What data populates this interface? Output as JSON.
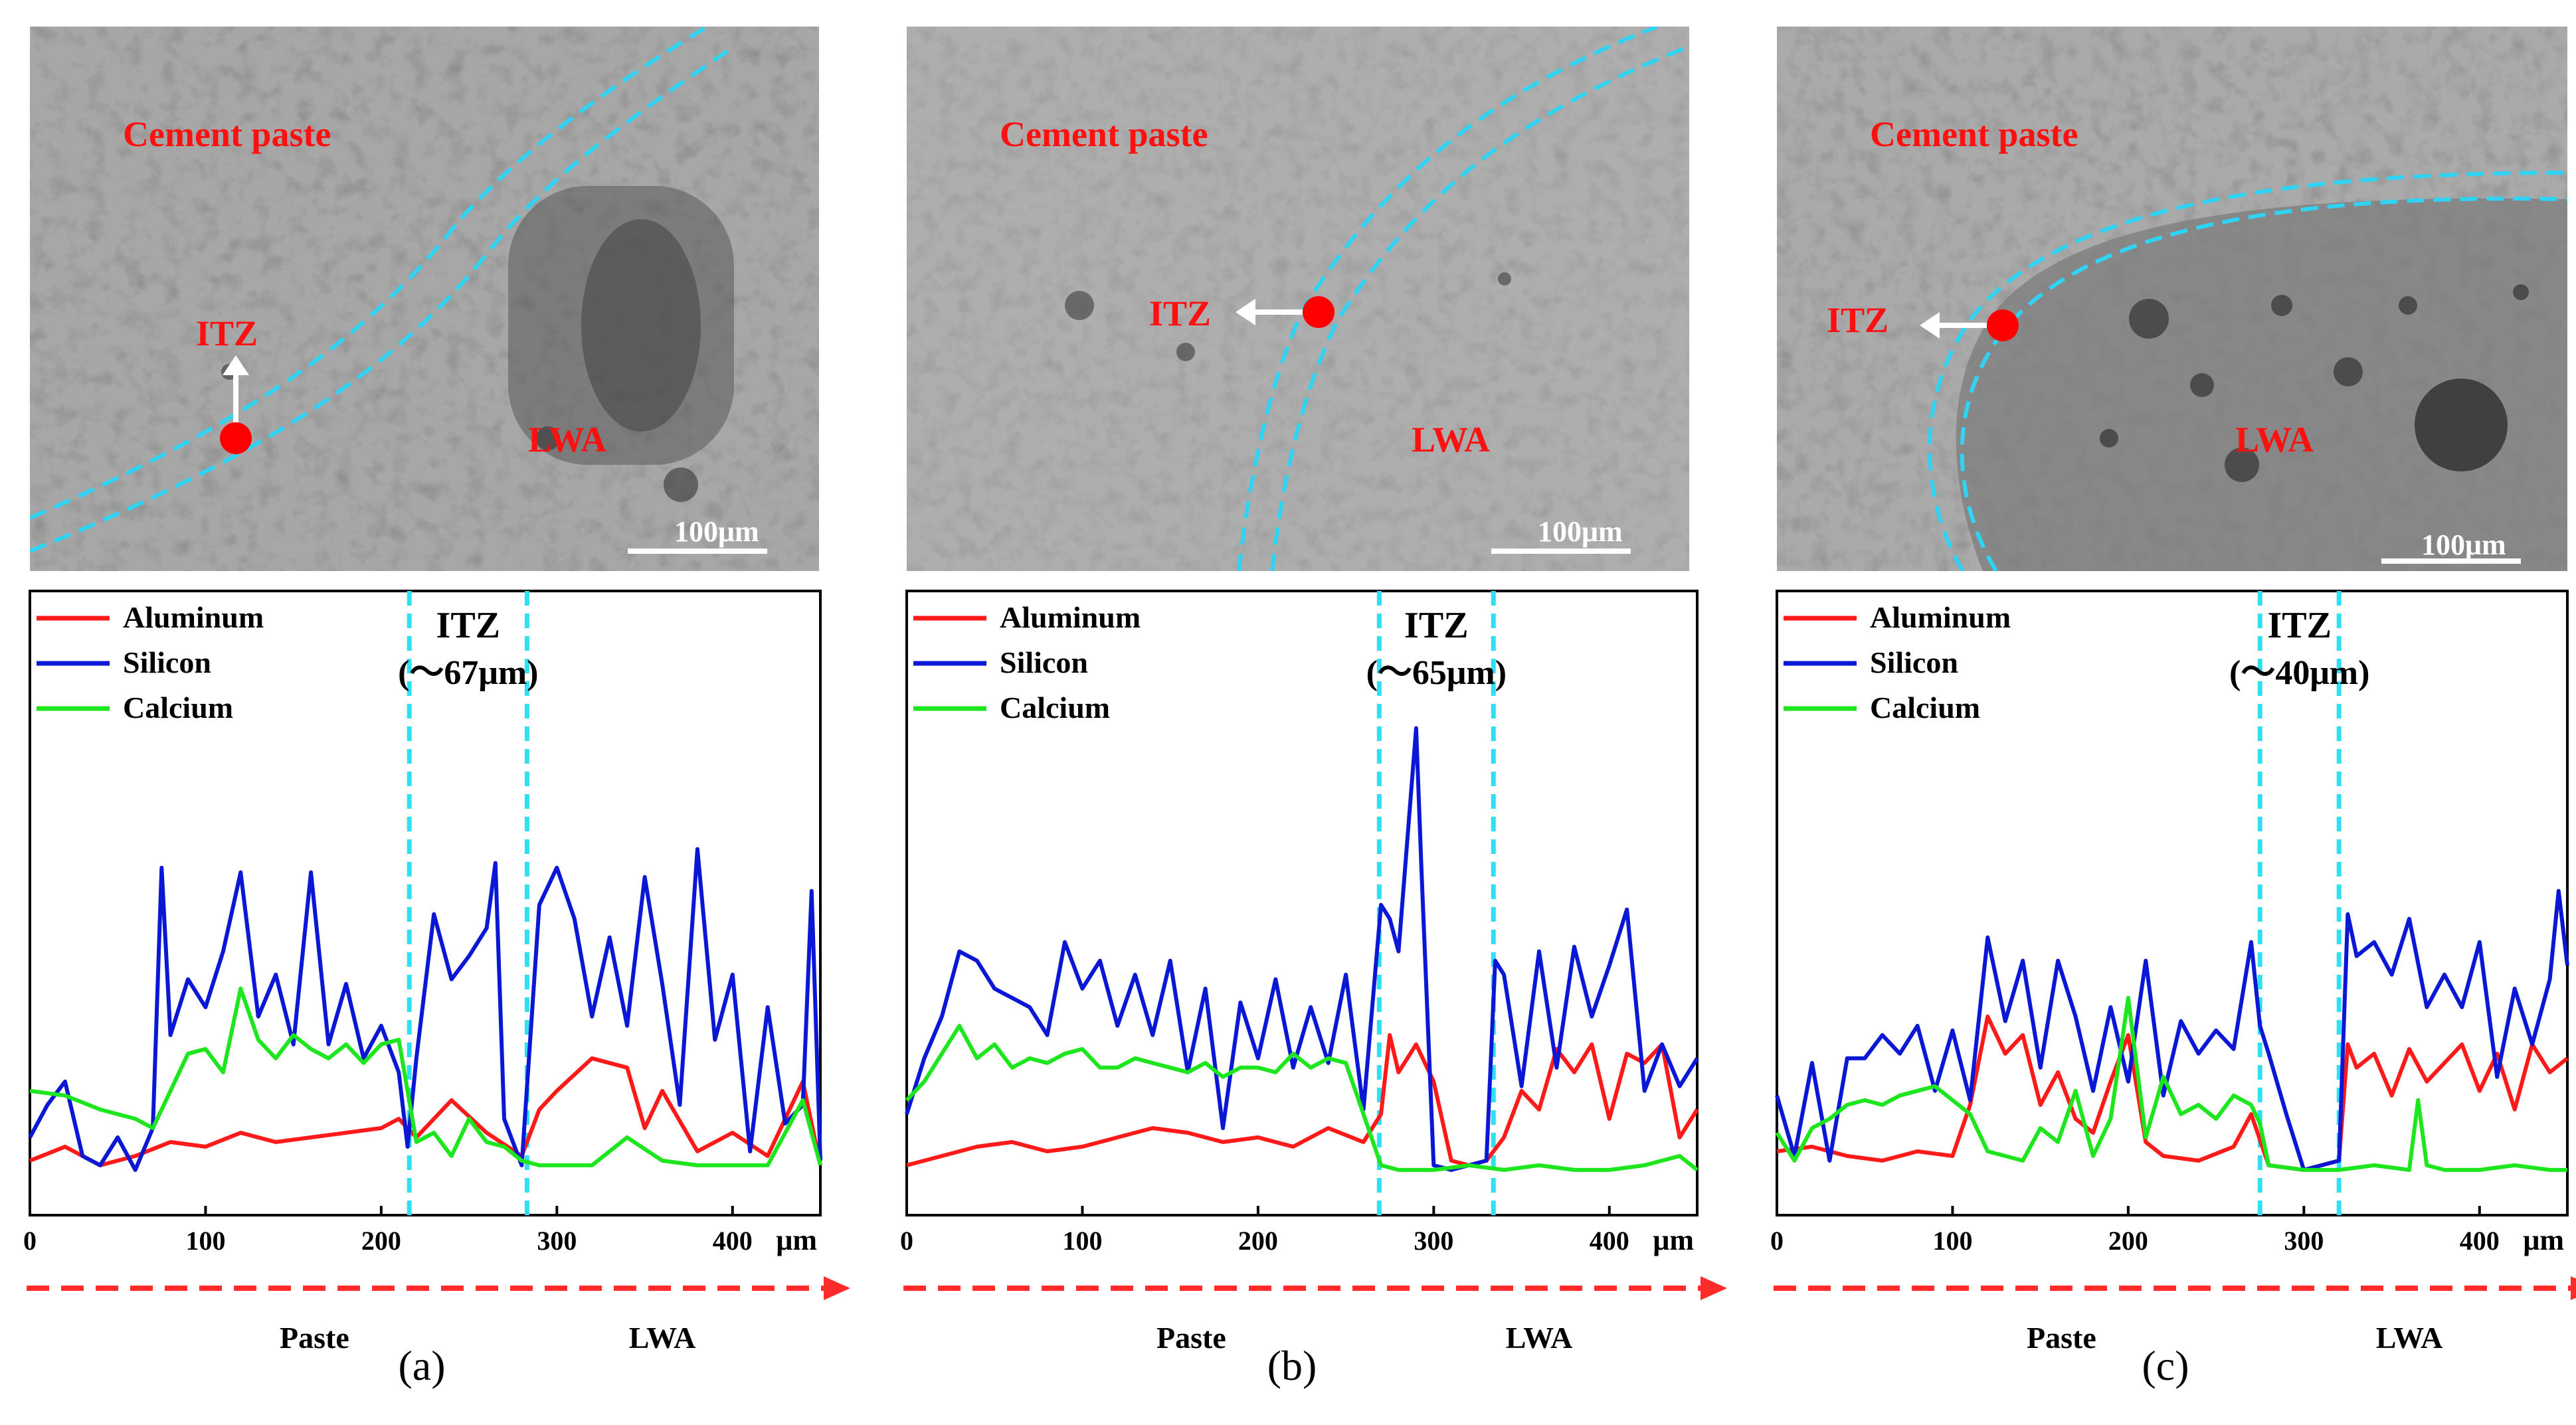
{
  "colors": {
    "aluminum": "#ff1a1a",
    "silicon": "#0a17d4",
    "calcium": "#1ee61e",
    "itz_boundary": "#2fe0f0",
    "itz_marker": "#ff0000",
    "arrow": "#ff2a2a",
    "sem_label": "#ff1010"
  },
  "panels": [
    {
      "id": "a",
      "caption": "(a)",
      "sem": {
        "label_paste": "Cement paste",
        "label_itz": "ITZ",
        "label_lwa": "LWA",
        "scale_bar": "100μm"
      },
      "chart_data": {
        "type": "line",
        "itz_label": "ITZ",
        "itz_width": "(～67μm)",
        "itz_range": [
          216,
          283
        ],
        "x_unit": "μm",
        "xlim": [
          0,
          450
        ],
        "xticks": [
          0,
          100,
          200,
          300,
          400
        ],
        "ylim": [
          0,
          10
        ],
        "region_left": "Paste",
        "region_right": "LWA",
        "legend": [
          "Aluminum",
          "Silicon",
          "Calcium"
        ],
        "series": [
          {
            "name": "Aluminum",
            "x": [
              0,
              20,
              40,
              60,
              80,
              100,
              120,
              140,
              160,
              180,
              200,
              210,
              220,
              240,
              260,
              280,
              290,
              300,
              320,
              340,
              350,
              360,
              380,
              400,
              420,
              440,
              450
            ],
            "values": [
              0.3,
              0.6,
              0.2,
              0.4,
              0.7,
              0.6,
              0.9,
              0.7,
              0.8,
              0.9,
              1.0,
              1.2,
              0.8,
              1.6,
              0.9,
              0.4,
              1.4,
              1.8,
              2.5,
              2.3,
              1.0,
              1.8,
              0.5,
              0.9,
              0.4,
              2.0,
              0.2
            ]
          },
          {
            "name": "Silicon",
            "x": [
              0,
              10,
              20,
              30,
              40,
              50,
              60,
              70,
              75,
              80,
              90,
              100,
              110,
              120,
              130,
              140,
              150,
              160,
              170,
              180,
              190,
              200,
              210,
              215,
              220,
              230,
              240,
              250,
              260,
              265,
              270,
              280,
              290,
              300,
              310,
              320,
              330,
              340,
              350,
              360,
              370,
              380,
              390,
              400,
              410,
              420,
              430,
              440,
              445,
              450
            ],
            "values": [
              0.8,
              1.5,
              2.0,
              0.4,
              0.2,
              0.8,
              0.1,
              1.0,
              6.6,
              3.0,
              4.2,
              3.6,
              4.8,
              6.5,
              3.4,
              4.3,
              2.8,
              6.5,
              2.8,
              4.1,
              2.5,
              3.2,
              2.2,
              0.6,
              2.5,
              5.6,
              4.2,
              4.7,
              5.3,
              6.7,
              1.2,
              0.2,
              5.8,
              6.6,
              5.5,
              3.4,
              5.1,
              3.2,
              6.4,
              4.1,
              1.5,
              7.0,
              2.9,
              4.3,
              0.5,
              3.6,
              1.1,
              1.5,
              6.1,
              0.3
            ]
          },
          {
            "name": "Calcium",
            "x": [
              0,
              20,
              40,
              60,
              70,
              80,
              90,
              100,
              110,
              120,
              130,
              140,
              150,
              160,
              170,
              180,
              190,
              200,
              210,
              220,
              230,
              240,
              250,
              260,
              270,
              280,
              290,
              300,
              320,
              340,
              360,
              380,
              400,
              420,
              440,
              450
            ],
            "values": [
              1.8,
              1.7,
              1.4,
              1.2,
              1.0,
              1.8,
              2.6,
              2.7,
              2.2,
              4.0,
              2.9,
              2.5,
              3.0,
              2.7,
              2.5,
              2.8,
              2.4,
              2.8,
              2.9,
              0.7,
              0.9,
              0.4,
              1.2,
              0.7,
              0.6,
              0.3,
              0.2,
              0.2,
              0.2,
              0.8,
              0.3,
              0.2,
              0.2,
              0.2,
              1.6,
              0.2
            ]
          }
        ]
      }
    },
    {
      "id": "b",
      "caption": "(b)",
      "sem": {
        "label_paste": "Cement paste",
        "label_itz": "ITZ",
        "label_lwa": "LWA",
        "scale_bar": "100μm"
      },
      "chart_data": {
        "type": "line",
        "itz_label": "ITZ",
        "itz_width": "(～65μm)",
        "itz_range": [
          269,
          334
        ],
        "x_unit": "μm",
        "xlim": [
          0,
          450
        ],
        "xticks": [
          0,
          100,
          200,
          300,
          400
        ],
        "ylim": [
          0,
          10
        ],
        "region_left": "Paste",
        "region_right": "LWA",
        "legend": [
          "Aluminum",
          "Silicon",
          "Calcium"
        ],
        "series": [
          {
            "name": "Aluminum",
            "x": [
              0,
              20,
              40,
              60,
              80,
              100,
              120,
              140,
              160,
              180,
              200,
              220,
              240,
              260,
              270,
              275,
              280,
              290,
              300,
              310,
              320,
              330,
              340,
              350,
              360,
              370,
              380,
              390,
              400,
              410,
              420,
              430,
              440,
              450
            ],
            "values": [
              0.2,
              0.4,
              0.6,
              0.7,
              0.5,
              0.6,
              0.8,
              1.0,
              0.9,
              0.7,
              0.8,
              0.6,
              1.0,
              0.7,
              1.3,
              3.0,
              2.2,
              2.8,
              2.0,
              0.3,
              0.2,
              0.3,
              0.8,
              1.8,
              1.4,
              2.7,
              2.2,
              2.8,
              1.2,
              2.6,
              2.4,
              2.8,
              0.8,
              1.4
            ]
          },
          {
            "name": "Silicon",
            "x": [
              0,
              10,
              20,
              30,
              40,
              50,
              60,
              70,
              80,
              90,
              100,
              110,
              120,
              130,
              140,
              150,
              160,
              170,
              180,
              190,
              200,
              210,
              220,
              230,
              240,
              250,
              260,
              270,
              275,
              280,
              290,
              293,
              300,
              310,
              320,
              330,
              335,
              340,
              350,
              360,
              370,
              380,
              390,
              400,
              410,
              420,
              430,
              440,
              450
            ],
            "values": [
              1.3,
              2.5,
              3.4,
              4.8,
              4.6,
              4.0,
              3.8,
              3.6,
              3.0,
              5.0,
              4.0,
              4.6,
              3.2,
              4.3,
              3.0,
              4.6,
              2.2,
              4.0,
              1.0,
              3.7,
              2.5,
              4.2,
              2.3,
              3.6,
              2.4,
              4.3,
              1.4,
              5.8,
              5.5,
              4.8,
              9.6,
              6.6,
              0.2,
              0.1,
              0.2,
              0.3,
              4.6,
              4.3,
              1.9,
              4.8,
              2.3,
              4.9,
              3.4,
              4.5,
              5.7,
              1.8,
              2.8,
              1.9,
              2.5
            ]
          },
          {
            "name": "Calcium",
            "x": [
              0,
              10,
              20,
              30,
              40,
              50,
              60,
              70,
              80,
              90,
              100,
              110,
              120,
              130,
              140,
              150,
              160,
              170,
              180,
              190,
              200,
              210,
              220,
              230,
              240,
              250,
              260,
              270,
              280,
              300,
              320,
              340,
              360,
              380,
              400,
              420,
              440,
              450
            ],
            "values": [
              1.6,
              2.0,
              2.6,
              3.2,
              2.5,
              2.8,
              2.3,
              2.5,
              2.4,
              2.6,
              2.7,
              2.3,
              2.3,
              2.5,
              2.4,
              2.3,
              2.2,
              2.4,
              2.1,
              2.3,
              2.3,
              2.2,
              2.6,
              2.3,
              2.5,
              2.4,
              1.3,
              0.2,
              0.1,
              0.1,
              0.2,
              0.1,
              0.2,
              0.1,
              0.1,
              0.2,
              0.4,
              0.1
            ]
          }
        ]
      }
    },
    {
      "id": "c",
      "caption": "(c)",
      "sem": {
        "label_paste": "Cement paste",
        "label_itz": "ITZ",
        "label_lwa": "LWA",
        "scale_bar": "100μm"
      },
      "chart_data": {
        "type": "line",
        "itz_label": "ITZ",
        "itz_width": "(～40μm)",
        "itz_range": [
          275,
          320
        ],
        "x_unit": "μm",
        "xlim": [
          0,
          450
        ],
        "xticks": [
          0,
          100,
          200,
          300,
          400
        ],
        "ylim": [
          0,
          10
        ],
        "region_left": "Paste",
        "region_right": "LWA",
        "legend": [
          "Aluminum",
          "Silicon",
          "Calcium"
        ],
        "series": [
          {
            "name": "Aluminum",
            "x": [
              0,
              20,
              40,
              60,
              80,
              100,
              110,
              120,
              130,
              140,
              150,
              160,
              170,
              180,
              190,
              200,
              210,
              220,
              240,
              260,
              270,
              280,
              300,
              320,
              325,
              330,
              340,
              350,
              360,
              370,
              380,
              390,
              400,
              410,
              420,
              430,
              440,
              450
            ],
            "values": [
              0.5,
              0.6,
              0.4,
              0.3,
              0.5,
              0.4,
              1.5,
              3.4,
              2.6,
              3.0,
              1.5,
              2.2,
              1.2,
              0.9,
              2.0,
              3.0,
              0.7,
              0.4,
              0.3,
              0.6,
              1.3,
              0.2,
              0.1,
              0.3,
              2.8,
              2.3,
              2.6,
              1.7,
              2.7,
              2.0,
              2.4,
              2.8,
              1.8,
              2.6,
              1.4,
              2.8,
              2.2,
              2.5
            ]
          },
          {
            "name": "Silicon",
            "x": [
              0,
              10,
              20,
              30,
              40,
              50,
              60,
              70,
              80,
              90,
              100,
              110,
              120,
              130,
              140,
              150,
              160,
              170,
              180,
              190,
              200,
              210,
              220,
              230,
              240,
              250,
              260,
              270,
              275,
              280,
              290,
              300,
              310,
              320,
              325,
              330,
              340,
              350,
              360,
              370,
              380,
              390,
              400,
              410,
              420,
              430,
              440,
              445,
              450
            ],
            "values": [
              1.7,
              0.4,
              2.4,
              0.3,
              2.5,
              2.5,
              3.0,
              2.6,
              3.2,
              1.8,
              3.1,
              1.6,
              5.1,
              3.3,
              4.6,
              2.3,
              4.6,
              3.4,
              1.8,
              3.6,
              2.0,
              4.6,
              1.7,
              3.3,
              2.6,
              3.1,
              2.7,
              5.0,
              3.2,
              2.6,
              1.3,
              0.1,
              0.2,
              0.3,
              5.6,
              4.7,
              5.0,
              4.3,
              5.5,
              3.6,
              4.3,
              3.6,
              5.0,
              2.1,
              4.0,
              2.8,
              4.2,
              6.1,
              4.5
            ]
          },
          {
            "name": "Calcium",
            "x": [
              0,
              10,
              20,
              30,
              40,
              50,
              60,
              70,
              80,
              90,
              100,
              110,
              120,
              130,
              140,
              150,
              160,
              170,
              180,
              190,
              195,
              200,
              210,
              220,
              230,
              240,
              250,
              260,
              270,
              275,
              280,
              300,
              320,
              340,
              360,
              365,
              370,
              380,
              400,
              420,
              440,
              450
            ],
            "values": [
              0.9,
              0.3,
              1.0,
              1.2,
              1.5,
              1.6,
              1.5,
              1.7,
              1.8,
              1.9,
              1.6,
              1.3,
              0.5,
              0.4,
              0.3,
              1.0,
              0.7,
              1.8,
              0.4,
              1.2,
              2.5,
              3.8,
              0.8,
              2.1,
              1.3,
              1.5,
              1.2,
              1.7,
              1.5,
              1.1,
              0.2,
              0.1,
              0.1,
              0.2,
              0.1,
              1.6,
              0.2,
              0.1,
              0.1,
              0.2,
              0.1,
              0.1
            ]
          }
        ]
      }
    }
  ]
}
